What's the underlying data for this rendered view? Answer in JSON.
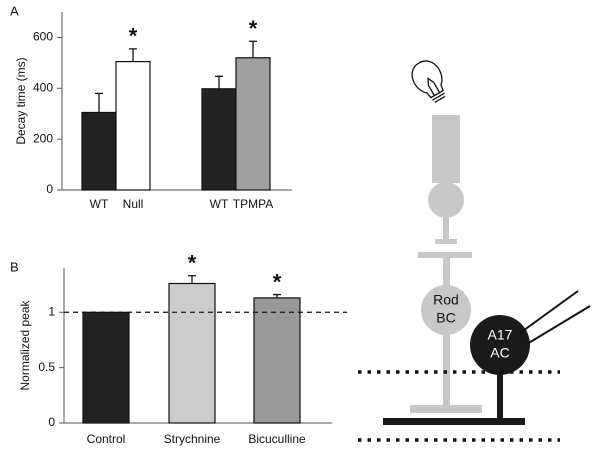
{
  "chart_data": [
    {
      "type": "bar",
      "label": "A",
      "y_label": "Decay time (ms)",
      "categories": [
        "WT",
        "Null",
        "WT",
        "TPMPA"
      ],
      "values": [
        305,
        505,
        398,
        520
      ],
      "errors": [
        75,
        50,
        49,
        65
      ],
      "colors": [
        "#222222",
        "#ffffff",
        "#222222",
        "#a0a0a0"
      ],
      "significance": [
        null,
        "*",
        null,
        "*"
      ],
      "ylim": [
        0,
        700
      ],
      "yticks": [
        0,
        200,
        400,
        600
      ]
    },
    {
      "type": "bar",
      "label": "B",
      "y_label": "Normalized peak",
      "categories": [
        "Control",
        "Strychnine",
        "Bicuculline"
      ],
      "values": [
        1,
        1.26,
        1.13
      ],
      "errors": [
        0,
        0.07,
        0.03
      ],
      "colors": [
        "#222222",
        "#cccccc",
        "#999999"
      ],
      "significance": [
        null,
        "*",
        "*"
      ],
      "reference_line": 1,
      "ylim": [
        0,
        1.4
      ],
      "yticks": [
        0,
        0.5,
        1
      ]
    }
  ],
  "diagram": {
    "nodes": [
      {
        "label": [
          "Rod",
          "BC"
        ]
      },
      {
        "label": [
          "A17",
          "AC"
        ]
      }
    ]
  }
}
